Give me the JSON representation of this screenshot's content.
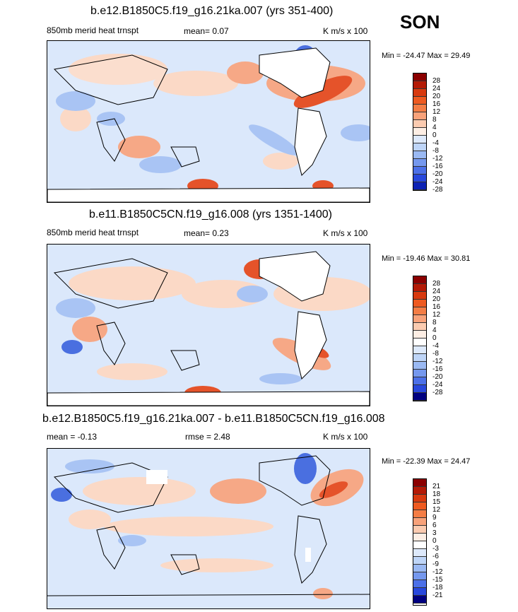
{
  "season": "SON",
  "panels": [
    {
      "title": "b.e12.B1850C5.f19_g16.21ka.007 (yrs 351-400)",
      "left_label": "850mb merid heat trnspt",
      "stat1": "mean=   0.07",
      "stat2": "",
      "units": "K m/s x 100",
      "minmax": "Min = -24.47 Max =  29.49",
      "legend_labels": [
        "28",
        "24",
        "20",
        "16",
        "12",
        "8",
        "4",
        "0",
        "-4",
        "-8",
        "-12",
        "-16",
        "-20",
        "-24",
        "-28"
      ]
    },
    {
      "title": "b.e11.B1850C5CN.f19_g16.008 (yrs 1351-1400)",
      "left_label": "850mb merid heat trnspt",
      "stat1": "mean=   0.23",
      "stat2": "",
      "units": "K m/s x 100",
      "minmax": "Min = -19.46 Max =  30.81",
      "legend_labels": [
        "28",
        "24",
        "20",
        "16",
        "12",
        "8",
        "4",
        "0",
        "-4",
        "-8",
        "-12",
        "-16",
        "-20",
        "-24",
        "-28"
      ]
    },
    {
      "title": "b.e12.B1850C5.f19_g16.21ka.007 - b.e11.B1850C5CN.f19_g16.008",
      "left_label": "mean =  -0.13",
      "stat1": "",
      "stat2": "rmse =   2.48",
      "units": "K m/s x 100",
      "minmax": "Min = -22.39 Max =  24.47",
      "legend_labels": [
        "21",
        "18",
        "15",
        "12",
        "9",
        "6",
        "3",
        "0",
        "-3",
        "-6",
        "-9",
        "-12",
        "-15",
        "-18",
        "-21"
      ]
    }
  ],
  "colors": {
    "bar": [
      "#8b0000",
      "#b41a06",
      "#d83a0f",
      "#ee5a20",
      "#f47d45",
      "#f8a27a",
      "#fbcbb0",
      "#fdeee4",
      "#ffffff",
      "#dde9fb",
      "#bed5f8",
      "#9ab9f3",
      "#7598ee",
      "#4c70e8",
      "#2848dc",
      "#0d22b4",
      "#000080"
    ],
    "land": "#ffffff",
    "pos_light": "#fbd9c6",
    "pos_mid": "#f6a886",
    "pos_strong": "#e5532a",
    "neg_light": "#dbe8fb",
    "neg_mid": "#a9c4f4",
    "neg_strong": "#4a6fe0"
  }
}
